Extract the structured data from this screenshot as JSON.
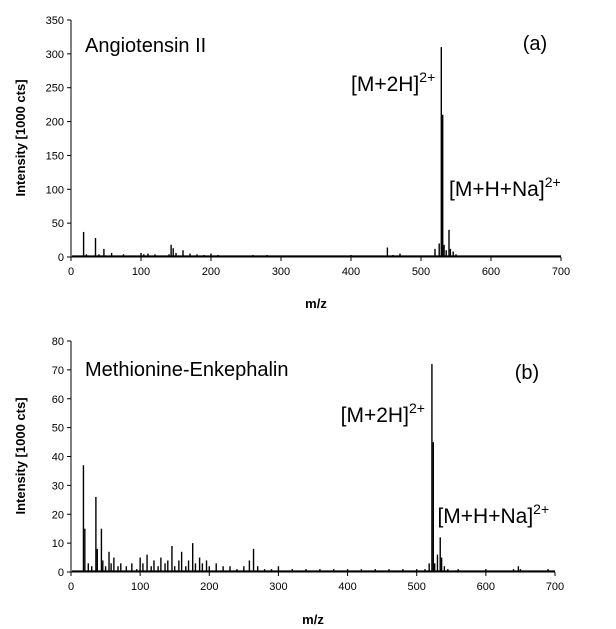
{
  "chart_data": [
    {
      "type": "line",
      "title": "Angiotensin II",
      "panel_label": "(a)",
      "xlabel": "m/z",
      "ylabel": "Intensity [1000 cts]",
      "xlim": [
        0,
        700
      ],
      "ylim": [
        0,
        350
      ],
      "x_ticks": [
        0,
        100,
        200,
        300,
        400,
        500,
        600,
        700
      ],
      "y_ticks": [
        0,
        50,
        100,
        150,
        200,
        250,
        300,
        350
      ],
      "grid": false,
      "annotations": [
        {
          "base": "[M+2H]",
          "sup": "2+",
          "x": 400,
          "y": 245
        },
        {
          "base": "[M+H+Na]",
          "sup": "2+",
          "x": 540,
          "y": 90
        }
      ],
      "series": [
        {
          "x": [
            18,
            22,
            35,
            40,
            47,
            58,
            75,
            100,
            104,
            110,
            120,
            140,
            143,
            146,
            150,
            160,
            170,
            180,
            190,
            200,
            210,
            230,
            260,
            270,
            280,
            300,
            320,
            400,
            452,
            460,
            470,
            480,
            500,
            520,
            526,
            529,
            531,
            533,
            536,
            540,
            542,
            546,
            550,
            560,
            580,
            600,
            650,
            690
          ],
          "y": [
            37,
            4,
            28,
            4,
            12,
            6,
            4,
            6,
            4,
            5,
            4,
            4,
            18,
            13,
            6,
            10,
            5,
            4,
            3,
            5,
            3,
            2,
            3,
            2,
            3,
            2,
            2,
            3,
            14,
            3,
            5,
            2,
            2,
            12,
            20,
            310,
            210,
            18,
            10,
            40,
            12,
            8,
            4,
            2,
            2,
            1,
            1,
            1
          ]
        }
      ]
    },
    {
      "type": "line",
      "title": "Methionine-Enkephalin",
      "panel_label": "(b)",
      "xlabel": "m/z",
      "ylabel": "Intensity [1000 cts]",
      "xlim": [
        0,
        700
      ],
      "ylim": [
        0,
        80
      ],
      "x_ticks": [
        0,
        100,
        200,
        300,
        400,
        500,
        600,
        700
      ],
      "y_ticks": [
        0,
        10,
        20,
        30,
        40,
        50,
        60,
        70,
        80
      ],
      "grid": false,
      "annotations": [
        {
          "base": "[M+2H]",
          "sup": "2+",
          "x": 390,
          "y": 52
        },
        {
          "base": "[M+H+Na]",
          "sup": "2+",
          "x": 530,
          "y": 17
        }
      ],
      "series": [
        {
          "x": [
            18,
            20,
            25,
            30,
            36,
            38,
            44,
            46,
            50,
            55,
            58,
            62,
            68,
            72,
            80,
            88,
            95,
            100,
            104,
            110,
            116,
            120,
            126,
            130,
            136,
            140,
            146,
            150,
            156,
            160,
            166,
            170,
            176,
            180,
            186,
            190,
            196,
            200,
            210,
            220,
            230,
            240,
            250,
            258,
            264,
            270,
            280,
            290,
            300,
            320,
            340,
            360,
            380,
            400,
            420,
            440,
            460,
            480,
            500,
            512,
            518,
            522,
            524,
            526,
            530,
            534,
            536,
            540,
            545,
            560,
            600,
            640,
            647,
            650,
            690
          ],
          "y": [
            37,
            15,
            3,
            2,
            26,
            8,
            15,
            4,
            2,
            7,
            3,
            5,
            2,
            3,
            2,
            3,
            1,
            5,
            3,
            6,
            2,
            4,
            2,
            5,
            3,
            4,
            9,
            2,
            4,
            7,
            2,
            4,
            10,
            3,
            5,
            3,
            4,
            2,
            3,
            2,
            2,
            1,
            2,
            4,
            8,
            2,
            1,
            1,
            2,
            1,
            1,
            1,
            1,
            1,
            1,
            1,
            1,
            1,
            1,
            1,
            3,
            72,
            45,
            3,
            6,
            12,
            5,
            2,
            1,
            1,
            1,
            1,
            2,
            1,
            1
          ]
        }
      ]
    }
  ]
}
